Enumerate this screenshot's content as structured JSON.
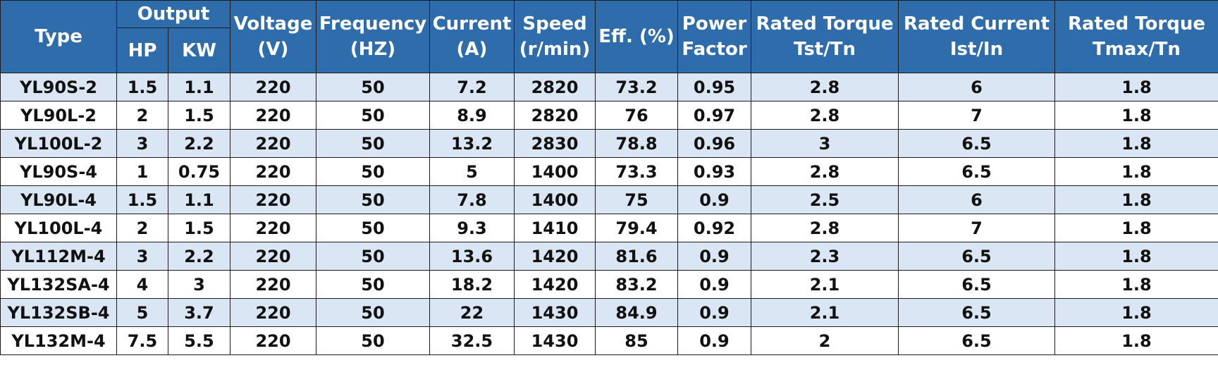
{
  "header": {
    "type": "Type",
    "output": "Output",
    "hp": "HP",
    "kw": "KW",
    "voltage": [
      "Voltage",
      "(V)"
    ],
    "frequency": [
      "Frequency",
      "(HZ)"
    ],
    "current": [
      "Current",
      "(A)"
    ],
    "speed": [
      "Speed",
      "(r/min)"
    ],
    "eff": "Eff. (%)",
    "power_factor": [
      "Power",
      "Factor"
    ],
    "rated_torque_tst": [
      "Rated Torque",
      "Tst/Tn"
    ],
    "rated_current": [
      "Rated Current",
      "Ist/In"
    ],
    "rated_torque_tmax": [
      "Rated Torque",
      "Tmax/Tn"
    ]
  },
  "rows": [
    [
      "YL90S-2",
      "1.5",
      "1.1",
      "220",
      "50",
      "7.2",
      "2820",
      "73.2",
      "0.95",
      "2.8",
      "6",
      "1.8"
    ],
    [
      "YL90L-2",
      "2",
      "1.5",
      "220",
      "50",
      "8.9",
      "2820",
      "76",
      "0.97",
      "2.8",
      "7",
      "1.8"
    ],
    [
      "YL100L-2",
      "3",
      "2.2",
      "220",
      "50",
      "13.2",
      "2830",
      "78.8",
      "0.96",
      "3",
      "6.5",
      "1.8"
    ],
    [
      "YL90S-4",
      "1",
      "0.75",
      "220",
      "50",
      "5",
      "1400",
      "73.3",
      "0.93",
      "2.8",
      "6.5",
      "1.8"
    ],
    [
      "YL90L-4",
      "1.5",
      "1.1",
      "220",
      "50",
      "7.8",
      "1400",
      "75",
      "0.9",
      "2.5",
      "6",
      "1.8"
    ],
    [
      "YL100L-4",
      "2",
      "1.5",
      "220",
      "50",
      "9.3",
      "1410",
      "79.4",
      "0.92",
      "2.8",
      "7",
      "1.8"
    ],
    [
      "YL112M-4",
      "3",
      "2.2",
      "220",
      "50",
      "13.6",
      "1420",
      "81.6",
      "0.9",
      "2.3",
      "6.5",
      "1.8"
    ],
    [
      "YL132SA-4",
      "4",
      "3",
      "220",
      "50",
      "18.2",
      "1420",
      "83.2",
      "0.9",
      "2.1",
      "6.5",
      "1.8"
    ],
    [
      "YL132SB-4",
      "5",
      "3.7",
      "220",
      "50",
      "22",
      "1430",
      "84.9",
      "0.9",
      "2.1",
      "6.5",
      "1.8"
    ],
    [
      "YL132M-4",
      "7.5",
      "5.5",
      "220",
      "50",
      "32.5",
      "1430",
      "85",
      "0.9",
      "2",
      "6.5",
      "1.8"
    ]
  ],
  "colors": {
    "header_bg": "#2f6cab",
    "header_text": "#ffffff",
    "row_stripe": "#dae6f4",
    "row_plain": "#ffffff",
    "border": "#1b1b1b"
  }
}
